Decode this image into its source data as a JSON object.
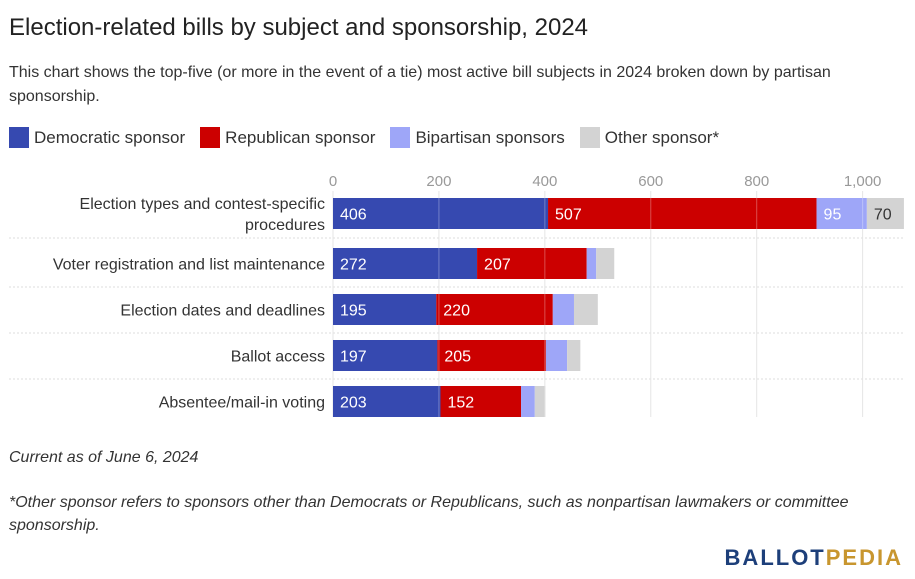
{
  "title": "Election-related bills by subject and sponsorship, 2024",
  "subtitle": "This chart shows the top-five (or more in the event of a tie) most active bill subjects in 2024 broken down by partisan sponsorship.",
  "note": "Current as of June 6, 2024",
  "footnote": "*Other sponsor refers to sponsors other than Democrats or Republicans, such as nonpartisan lawmakers or committee sponsorship.",
  "logo": {
    "part1": "BALLOT",
    "part2": "PEDIA",
    "color1": "#1d3f7a",
    "color2": "#c8962f"
  },
  "chart_data": {
    "type": "bar",
    "orientation": "horizontal",
    "stacked": true,
    "title": "Election-related bills by subject and sponsorship, 2024",
    "xlabel": "",
    "ylabel": "",
    "xlim": [
      0,
      1080
    ],
    "xticks": [
      0,
      200,
      400,
      600,
      800,
      1000
    ],
    "xtick_labels": [
      "0",
      "200",
      "400",
      "600",
      "800",
      "1,000"
    ],
    "grid": true,
    "legend_position": "top-left",
    "categories": [
      "Election types and contest-specific procedures",
      "Voter registration and list maintenance",
      "Election dates and deadlines",
      "Ballot access",
      "Absentee/mail-in voting"
    ],
    "category_label_lines": [
      [
        "Election types and contest-specific",
        "procedures"
      ],
      [
        "Voter registration and list maintenance"
      ],
      [
        "Election dates and deadlines"
      ],
      [
        "Ballot access"
      ],
      [
        "Absentee/mail-in voting"
      ]
    ],
    "series": [
      {
        "name": "Democratic sponsor",
        "color": "#3649b0",
        "values": [
          406,
          272,
          195,
          197,
          203
        ],
        "labeled": [
          true,
          true,
          true,
          true,
          true
        ]
      },
      {
        "name": "Republican sponsor",
        "color": "#cc0000",
        "values": [
          507,
          207,
          220,
          205,
          152
        ],
        "labeled": [
          true,
          true,
          true,
          true,
          true
        ]
      },
      {
        "name": "Bipartisan sponsors",
        "color": "#9ea6f8",
        "values": [
          95,
          18,
          40,
          40,
          26
        ],
        "labeled": [
          true,
          false,
          false,
          false,
          false
        ]
      },
      {
        "name": "Other sponsor*",
        "color": "#d3d3d3",
        "values": [
          70,
          34,
          45,
          25,
          20
        ],
        "labeled": [
          true,
          false,
          false,
          false,
          false
        ]
      }
    ]
  }
}
